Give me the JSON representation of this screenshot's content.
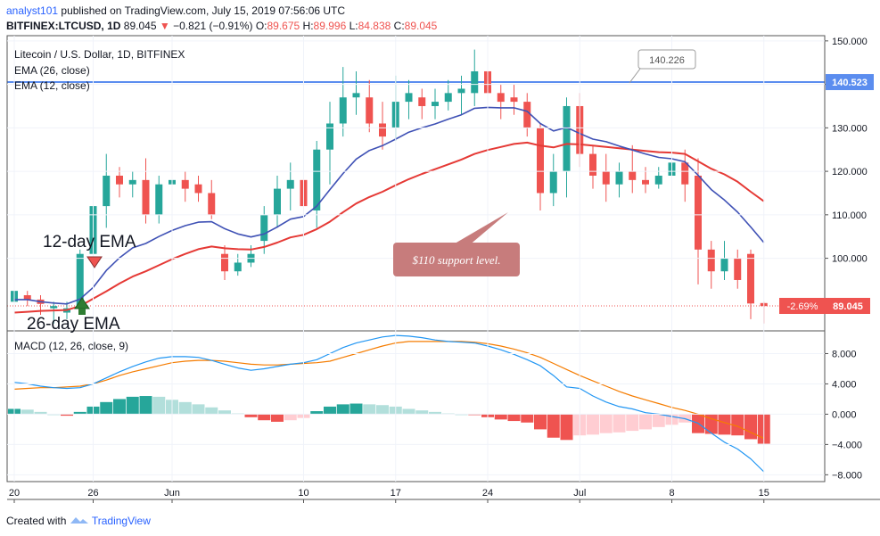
{
  "header": {
    "user": "analyst101",
    "published": "published on TradingView.com, July 15, 2019 07:56:06 UTC",
    "symbol": "BITFINEX:LTCUSD, 1D",
    "last": "89.045",
    "change": "−0.821 (−0.91%)",
    "o_label": "O:",
    "o": "89.675",
    "h_label": "H:",
    "h": "89.996",
    "l_label": "L:",
    "l": "84.838",
    "c_label": "C:",
    "c": "89.045"
  },
  "legend": {
    "title": "Litecoin / U.S. Dollar, 1D, BITFINEX",
    "ema26": "EMA (26, close)",
    "ema12": "EMA (12, close)",
    "macd": "MACD (12, 26, close, 9)"
  },
  "annotations": {
    "ema12_label": "12-day EMA",
    "ema26_label": "26-day EMA",
    "support_callout": "$110 support level.",
    "line_label": "140.226",
    "line_price_tag": "140.523",
    "last_change_tag": "-2.69%",
    "last_price_tag": "89.045"
  },
  "footer": {
    "created_with": "Created with",
    "brand": "TradingView"
  },
  "colors": {
    "up": "#26a69a",
    "down": "#ef5350",
    "ema12": "#3f51b5",
    "ema26": "#e53935",
    "hline": "#5b8def",
    "macd": "#2196f3",
    "signal": "#f57c00",
    "hist_up_strong": "#26a69a",
    "hist_up_weak": "#b2dfdb",
    "hist_down_strong": "#ef5350",
    "hist_down_weak": "#ffcdd2",
    "callout": "#c77c7c"
  },
  "chart_data": [
    {
      "type": "candlestick",
      "title": "Litecoin / U.S. Dollar, 1D, BITFINEX",
      "y_ticks": [
        100,
        110,
        120,
        130,
        140,
        150
      ],
      "y_tick_labels": [
        "100.000",
        "110.000",
        "120.000",
        "130.000",
        "140.000",
        "150.000"
      ],
      "ylim": [
        83.3,
        151.2
      ],
      "x_ticks": [
        {
          "i": 0,
          "label": "20"
        },
        {
          "i": 6,
          "label": "26"
        },
        {
          "i": 12,
          "label": "Jun"
        },
        {
          "i": 22,
          "label": "10"
        },
        {
          "i": 29,
          "label": "17"
        },
        {
          "i": 36,
          "label": "24"
        },
        {
          "i": 43,
          "label": "Jul"
        },
        {
          "i": 50,
          "label": "8"
        },
        {
          "i": 57,
          "label": "15"
        }
      ],
      "candles": [
        [
          90,
          92.5,
          87,
          93
        ],
        [
          91.5,
          90.5,
          89,
          92.5
        ],
        [
          90.5,
          89.5,
          87,
          91.5
        ],
        [
          88.5,
          89,
          85,
          90
        ],
        [
          87.5,
          88.5,
          86,
          90
        ],
        [
          89,
          101,
          88,
          102
        ],
        [
          101,
          112,
          97,
          115
        ],
        [
          112,
          119,
          107,
          124
        ],
        [
          119,
          117,
          114,
          121
        ],
        [
          117,
          118,
          114,
          120
        ],
        [
          118,
          110,
          108,
          123
        ],
        [
          110,
          117,
          108,
          119
        ],
        [
          117,
          118,
          113,
          119
        ],
        [
          118,
          116,
          113,
          120
        ],
        [
          117,
          115,
          113,
          119
        ],
        [
          115,
          110,
          109,
          118
        ],
        [
          101,
          97,
          95,
          103
        ],
        [
          97,
          99,
          96,
          101
        ],
        [
          99,
          101,
          98,
          103
        ],
        [
          104,
          110,
          101,
          112
        ],
        [
          110,
          116,
          107,
          119
        ],
        [
          116,
          118,
          111,
          122
        ],
        [
          118,
          112,
          110,
          120
        ],
        [
          111,
          125,
          107,
          127
        ],
        [
          125,
          131,
          117,
          136
        ],
        [
          131,
          137,
          128,
          144
        ],
        [
          137,
          138,
          133,
          143
        ],
        [
          137,
          131,
          129,
          141
        ],
        [
          131,
          128,
          125,
          136
        ],
        [
          130,
          136,
          127,
          142
        ],
        [
          136,
          138,
          132,
          141
        ],
        [
          137,
          135,
          132,
          139
        ],
        [
          135,
          136,
          132,
          139
        ],
        [
          136,
          138,
          134,
          141
        ],
        [
          138,
          139,
          133,
          142
        ],
        [
          138,
          143,
          135,
          148
        ],
        [
          143,
          138,
          133,
          145
        ],
        [
          138,
          136,
          132,
          140
        ],
        [
          137,
          136,
          133,
          140
        ],
        [
          136,
          130,
          128,
          138
        ],
        [
          130,
          115,
          111,
          131
        ],
        [
          115,
          120,
          112,
          124
        ],
        [
          120,
          135,
          114,
          137
        ],
        [
          135,
          124,
          121,
          138
        ],
        [
          124,
          119,
          116,
          126
        ],
        [
          120,
          117,
          113,
          124
        ],
        [
          117,
          120,
          114,
          122
        ],
        [
          120,
          118,
          115,
          126
        ],
        [
          118,
          117,
          115,
          121
        ],
        [
          117,
          119,
          116,
          121
        ],
        [
          119,
          122,
          117,
          126
        ],
        [
          122,
          117,
          113,
          125
        ],
        [
          119,
          102,
          94,
          123
        ],
        [
          102,
          97,
          93,
          104
        ],
        [
          97,
          100,
          95,
          104
        ],
        [
          100,
          95,
          93,
          102
        ],
        [
          101,
          89.6,
          86,
          102
        ],
        [
          89.7,
          89,
          85,
          90
        ]
      ],
      "ema12": [
        90.5,
        90.5,
        90,
        89.7,
        89.5,
        90.6,
        93.3,
        97.2,
        100.1,
        102.4,
        103.4,
        105,
        106.4,
        107.5,
        108.3,
        108.4,
        106.8,
        105.6,
        104.9,
        105.6,
        107.2,
        109,
        109.6,
        112,
        115.8,
        119.5,
        122.8,
        124.8,
        125.9,
        127.4,
        129,
        130,
        130.9,
        132,
        133,
        134.5,
        134.7,
        134.6,
        134.6,
        133.8,
        131,
        129.3,
        130.1,
        128.7,
        127.4,
        126.8,
        125.8,
        124.9,
        124,
        123.2,
        122.9,
        122.2,
        119.1,
        115.8,
        113.4,
        110.6,
        107.2,
        103.6
      ],
      "ema26": [
        87.5,
        87.7,
        87.9,
        88,
        88.1,
        89,
        90.7,
        92.4,
        94.2,
        95.8,
        97,
        98.4,
        99.8,
        101,
        102.1,
        102.7,
        102.3,
        102.1,
        102,
        102.6,
        103.6,
        104.8,
        105.4,
        106.7,
        108.4,
        110.6,
        112.6,
        114.1,
        115.3,
        116.8,
        118.2,
        119.4,
        120.5,
        121.6,
        122.7,
        124,
        124.9,
        125.6,
        126.3,
        126.6,
        125.9,
        125.5,
        126.3,
        126.2,
        125.9,
        125.6,
        125.3,
        125,
        124.7,
        124.4,
        124.3,
        124,
        122.3,
        120.6,
        119.3,
        117.6,
        115.3,
        113.1
      ],
      "hline": 140.523,
      "last_price": 89.045
    },
    {
      "type": "macd",
      "title": "MACD (12, 26, close, 9)",
      "y_ticks": [
        -8,
        -4,
        0,
        4,
        8
      ],
      "y_tick_labels": [
        "−8.000",
        "−4.000",
        "0.000",
        "4.000",
        "8.000"
      ],
      "ylim": [
        -8.9,
        11.0
      ],
      "macd": [
        4.2,
        4.0,
        3.7,
        3.5,
        3.4,
        3.5,
        4.0,
        4.8,
        5.6,
        6.3,
        6.9,
        7.4,
        7.6,
        7.6,
        7.5,
        7.1,
        6.6,
        6.1,
        5.8,
        6.0,
        6.3,
        6.6,
        6.8,
        7.2,
        8.0,
        8.8,
        9.4,
        9.8,
        10.2,
        10.4,
        10.3,
        10.1,
        9.8,
        9.6,
        9.5,
        9.4,
        9.0,
        8.5,
        7.9,
        7.2,
        6.4,
        5.1,
        3.6,
        3.4,
        2.4,
        1.6,
        1.0,
        0.7,
        0.2,
        0.0,
        -0.3,
        -0.6,
        -1.2,
        -2.5,
        -3.7,
        -4.6,
        -5.9,
        -7.6
      ],
      "signal": [
        3.3,
        3.4,
        3.5,
        3.5,
        3.6,
        3.7,
        4.0,
        4.5,
        5.1,
        5.6,
        6.0,
        6.4,
        6.8,
        7.0,
        7.1,
        7.1,
        7.0,
        6.8,
        6.6,
        6.5,
        6.5,
        6.6,
        6.7,
        6.8,
        7.0,
        7.5,
        8.0,
        8.5,
        9.0,
        9.4,
        9.6,
        9.6,
        9.6,
        9.6,
        9.6,
        9.5,
        9.3,
        9.0,
        8.6,
        8.1,
        7.5,
        6.7,
        5.9,
        5.1,
        4.4,
        3.7,
        3.0,
        2.4,
        1.9,
        1.4,
        0.9,
        0.5,
        0.0,
        -0.6,
        -1.1,
        -1.6,
        -2.4,
        -3.2
      ],
      "histogram": [
        0.7,
        0.6,
        0.3,
        0.0,
        -0.2,
        0.3,
        1.0,
        1.6,
        2.0,
        2.3,
        2.4,
        2.3,
        1.9,
        1.6,
        1.3,
        0.9,
        0.5,
        0.1,
        -0.4,
        -0.8,
        -1.0,
        -0.8,
        -0.5,
        0.4,
        1.0,
        1.3,
        1.4,
        1.3,
        1.2,
        1.0,
        0.7,
        0.5,
        0.3,
        0.1,
        0.0,
        -0.1,
        -0.4,
        -0.7,
        -0.9,
        -1.1,
        -2.0,
        -3.1,
        -3.4,
        -2.8,
        -2.7,
        -2.5,
        -2.4,
        -2.2,
        -2.0,
        -1.7,
        -1.4,
        -1.1,
        -2.5,
        -2.6,
        -2.7,
        -2.8,
        -3.3,
        -3.9
      ]
    }
  ]
}
